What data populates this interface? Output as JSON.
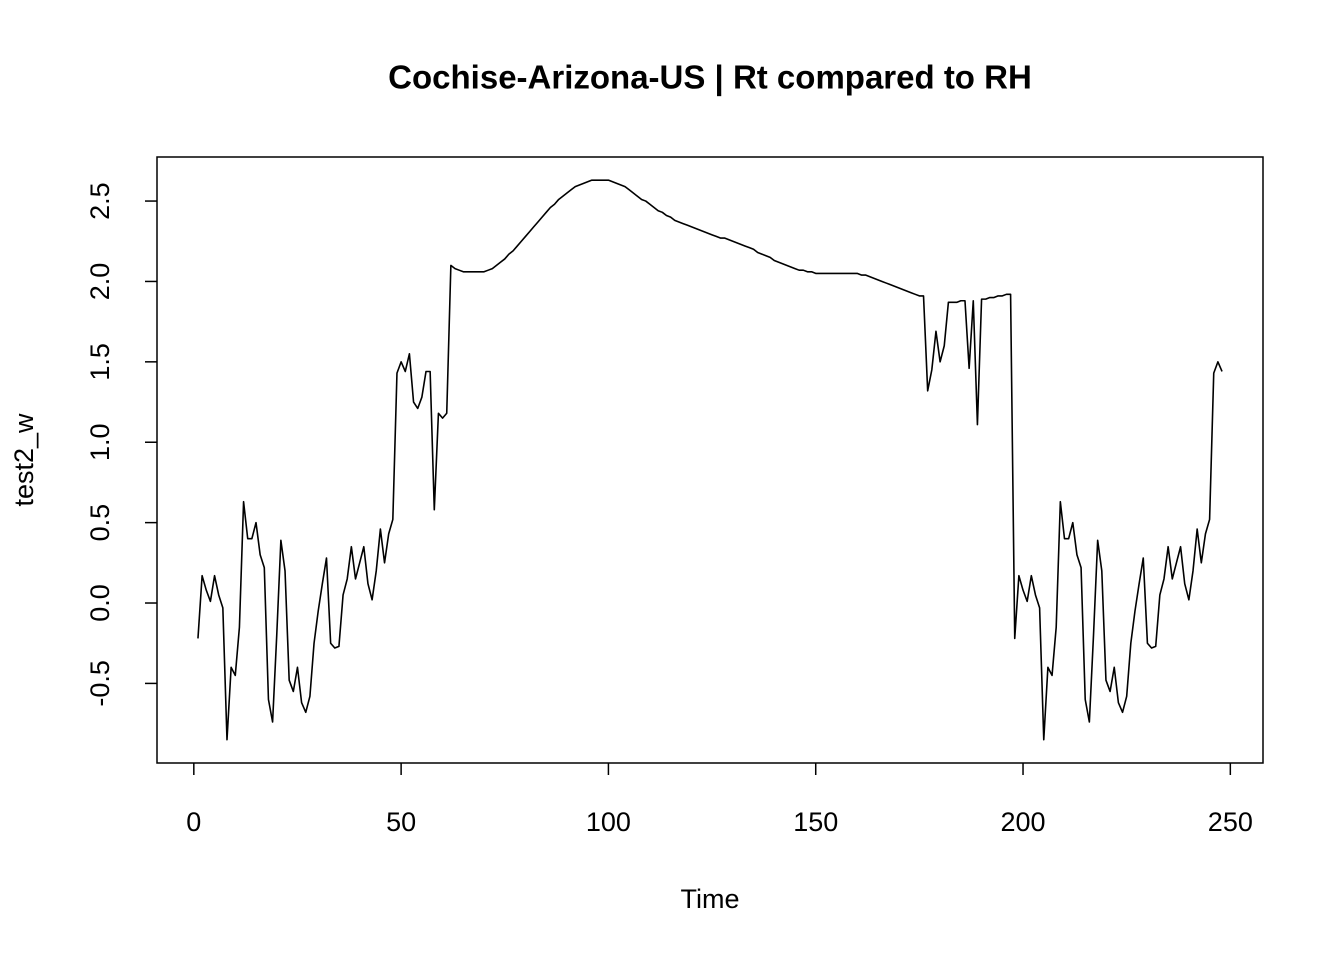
{
  "chart_data": {
    "type": "line",
    "title": "Cochise-Arizona-US | Rt compared to RH",
    "xlabel": "Time",
    "ylabel": "test2_w",
    "xlim": [
      -8.88,
      257.88
    ],
    "ylim": [
      -0.995,
      2.774
    ],
    "xticks": [
      0,
      50,
      100,
      150,
      200,
      250
    ],
    "yticks": [
      -0.5,
      {
        "value": 0,
        "label": "0.0"
      },
      0.5,
      {
        "value": 1,
        "label": "1.0"
      },
      1.5,
      {
        "value": 2,
        "label": "2.0"
      },
      2.5
    ],
    "grid": false,
    "x": [
      1,
      2,
      3,
      4,
      5,
      6,
      7,
      8,
      9,
      10,
      11,
      12,
      13,
      14,
      15,
      16,
      17,
      18,
      19,
      20,
      21,
      22,
      23,
      24,
      25,
      26,
      27,
      28,
      29,
      30,
      31,
      32,
      33,
      34,
      35,
      36,
      37,
      38,
      39,
      40,
      41,
      42,
      43,
      44,
      45,
      46,
      47,
      48,
      49,
      50,
      51,
      52,
      53,
      54,
      55,
      56,
      57,
      58,
      59,
      60,
      61,
      62,
      63,
      64,
      65,
      66,
      67,
      68,
      69,
      70,
      71,
      72,
      73,
      74,
      75,
      76,
      77,
      78,
      79,
      80,
      81,
      82,
      83,
      84,
      85,
      86,
      87,
      88,
      89,
      90,
      91,
      92,
      93,
      94,
      95,
      96,
      97,
      98,
      99,
      100,
      101,
      102,
      103,
      104,
      105,
      106,
      107,
      108,
      109,
      110,
      111,
      112,
      113,
      114,
      115,
      116,
      117,
      118,
      119,
      120,
      121,
      122,
      123,
      124,
      125,
      126,
      127,
      128,
      129,
      130,
      131,
      132,
      133,
      134,
      135,
      136,
      137,
      138,
      139,
      140,
      141,
      142,
      143,
      144,
      145,
      146,
      147,
      148,
      149,
      150,
      151,
      152,
      153,
      154,
      155,
      156,
      157,
      158,
      159,
      160,
      161,
      162,
      163,
      164,
      165,
      166,
      167,
      168,
      169,
      170,
      171,
      172,
      173,
      174,
      175,
      176,
      177,
      178,
      179,
      180,
      181,
      182,
      183,
      184,
      185,
      186,
      187,
      188,
      189,
      190,
      191,
      192,
      193,
      194,
      195,
      196,
      197,
      198,
      199,
      200,
      201,
      202,
      203,
      204,
      205,
      206,
      207,
      208,
      209,
      210,
      211,
      212,
      213,
      214,
      215,
      216,
      217,
      218,
      219,
      220,
      221,
      222,
      223,
      224,
      225,
      226,
      227,
      228,
      229,
      230,
      231,
      232,
      233,
      234,
      235,
      236,
      237,
      238,
      239,
      240,
      241,
      242,
      243,
      244,
      245,
      246,
      247,
      248
    ],
    "series": [
      {
        "color": "#000000",
        "values": [
          -0.22,
          0.17,
          0.08,
          0.01,
          0.17,
          0.05,
          -0.03,
          -0.85,
          -0.4,
          -0.45,
          -0.15,
          0.63,
          0.4,
          0.4,
          0.5,
          0.3,
          0.22,
          -0.6,
          -0.74,
          -0.2,
          0.39,
          0.2,
          -0.48,
          -0.55,
          -0.4,
          -0.62,
          -0.68,
          -0.58,
          -0.25,
          -0.05,
          0.12,
          0.28,
          -0.25,
          -0.28,
          -0.27,
          0.05,
          0.15,
          0.35,
          0.15,
          0.25,
          0.35,
          0.12,
          0.02,
          0.2,
          0.46,
          0.25,
          0.43,
          0.52,
          1.43,
          1.5,
          1.44,
          1.55,
          1.25,
          1.21,
          1.28,
          1.44,
          1.44,
          0.58,
          1.18,
          1.15,
          1.18,
          2.1,
          2.08,
          2.07,
          2.06,
          2.06,
          2.06,
          2.06,
          2.06,
          2.06,
          2.07,
          2.08,
          2.1,
          2.12,
          2.14,
          2.17,
          2.19,
          2.22,
          2.25,
          2.28,
          2.31,
          2.34,
          2.37,
          2.4,
          2.43,
          2.46,
          2.48,
          2.51,
          2.53,
          2.55,
          2.57,
          2.59,
          2.6,
          2.61,
          2.62,
          2.63,
          2.63,
          2.63,
          2.63,
          2.63,
          2.62,
          2.61,
          2.6,
          2.59,
          2.57,
          2.55,
          2.53,
          2.51,
          2.5,
          2.48,
          2.46,
          2.44,
          2.43,
          2.41,
          2.4,
          2.38,
          2.37,
          2.36,
          2.35,
          2.34,
          2.33,
          2.32,
          2.31,
          2.3,
          2.29,
          2.28,
          2.27,
          2.27,
          2.26,
          2.25,
          2.24,
          2.23,
          2.22,
          2.21,
          2.2,
          2.18,
          2.17,
          2.16,
          2.15,
          2.13,
          2.12,
          2.11,
          2.1,
          2.09,
          2.08,
          2.07,
          2.07,
          2.06,
          2.06,
          2.05,
          2.05,
          2.05,
          2.05,
          2.05,
          2.05,
          2.05,
          2.05,
          2.05,
          2.05,
          2.05,
          2.04,
          2.04,
          2.03,
          2.02,
          2.01,
          2.0,
          1.99,
          1.98,
          1.97,
          1.96,
          1.95,
          1.94,
          1.93,
          1.92,
          1.91,
          1.91,
          1.32,
          1.45,
          1.69,
          1.5,
          1.6,
          1.87,
          1.87,
          1.87,
          1.88,
          1.88,
          1.46,
          1.88,
          1.11,
          1.89,
          1.89,
          1.9,
          1.9,
          1.91,
          1.91,
          1.92,
          1.92,
          -0.22,
          0.17,
          0.08,
          0.01,
          0.17,
          0.05,
          -0.03,
          -0.85,
          -0.4,
          -0.45,
          -0.15,
          0.63,
          0.4,
          0.4,
          0.5,
          0.3,
          0.22,
          -0.6,
          -0.74,
          -0.2,
          0.39,
          0.2,
          -0.48,
          -0.55,
          -0.4,
          -0.62,
          -0.68,
          -0.58,
          -0.25,
          -0.05,
          0.12,
          0.28,
          -0.25,
          -0.28,
          -0.27,
          0.05,
          0.15,
          0.35,
          0.15,
          0.25,
          0.35,
          0.12,
          0.02,
          0.2,
          0.46,
          0.25,
          0.43,
          0.52,
          1.43,
          1.5,
          1.44
        ]
      }
    ]
  }
}
